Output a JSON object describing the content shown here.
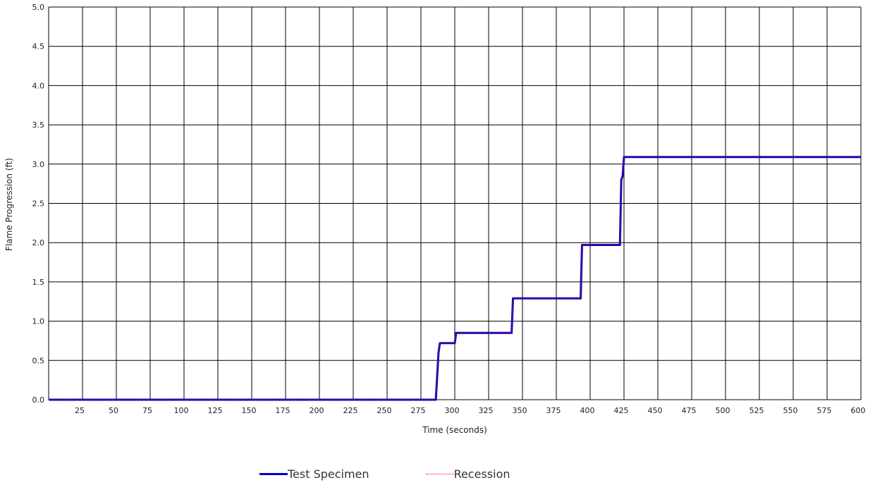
{
  "chart_data": {
    "type": "line",
    "title": "",
    "xlabel": "Time (seconds)",
    "ylabel": "Flame Progression (ft)",
    "xlim": [
      0,
      600
    ],
    "ylim": [
      0,
      5
    ],
    "grid": true,
    "legend_position": "bottom-center",
    "x_ticks": [
      25,
      50,
      75,
      100,
      125,
      150,
      175,
      200,
      225,
      250,
      275,
      300,
      325,
      350,
      375,
      400,
      425,
      450,
      475,
      500,
      525,
      550,
      575,
      600
    ],
    "y_ticks": [
      "0.0",
      "0.5",
      "1.0",
      "1.5",
      "2.0",
      "2.5",
      "3.0",
      "3.5",
      "4.0",
      "4.5",
      "5.0"
    ],
    "series": [
      {
        "name": "Test Specimen",
        "color": "#0000cc",
        "style": "solid",
        "points": [
          [
            0,
            0
          ],
          [
            286,
            0
          ],
          [
            288,
            0.6
          ],
          [
            289,
            0.72
          ],
          [
            300,
            0.72
          ],
          [
            301,
            0.85
          ],
          [
            342,
            0.85
          ],
          [
            343,
            1.29
          ],
          [
            393,
            1.29
          ],
          [
            394,
            1.97
          ],
          [
            422,
            1.97
          ],
          [
            423,
            2.8
          ],
          [
            424,
            2.85
          ],
          [
            425,
            3.09
          ],
          [
            600,
            3.09
          ]
        ]
      },
      {
        "name": "Recession",
        "color": "#ff0000",
        "style": "dotted",
        "points": [
          [
            0,
            0
          ],
          [
            286,
            0
          ],
          [
            288,
            0.6
          ],
          [
            289,
            0.72
          ],
          [
            300,
            0.72
          ],
          [
            301,
            0.85
          ],
          [
            342,
            0.85
          ],
          [
            343,
            1.29
          ],
          [
            393,
            1.29
          ],
          [
            394,
            1.97
          ],
          [
            422,
            1.97
          ],
          [
            423,
            2.8
          ],
          [
            424,
            2.85
          ],
          [
            425,
            3.09
          ],
          [
            600,
            3.09
          ]
        ]
      }
    ]
  },
  "legend": {
    "items": [
      {
        "label": "Test Specimen"
      },
      {
        "label": "Recession"
      }
    ]
  }
}
